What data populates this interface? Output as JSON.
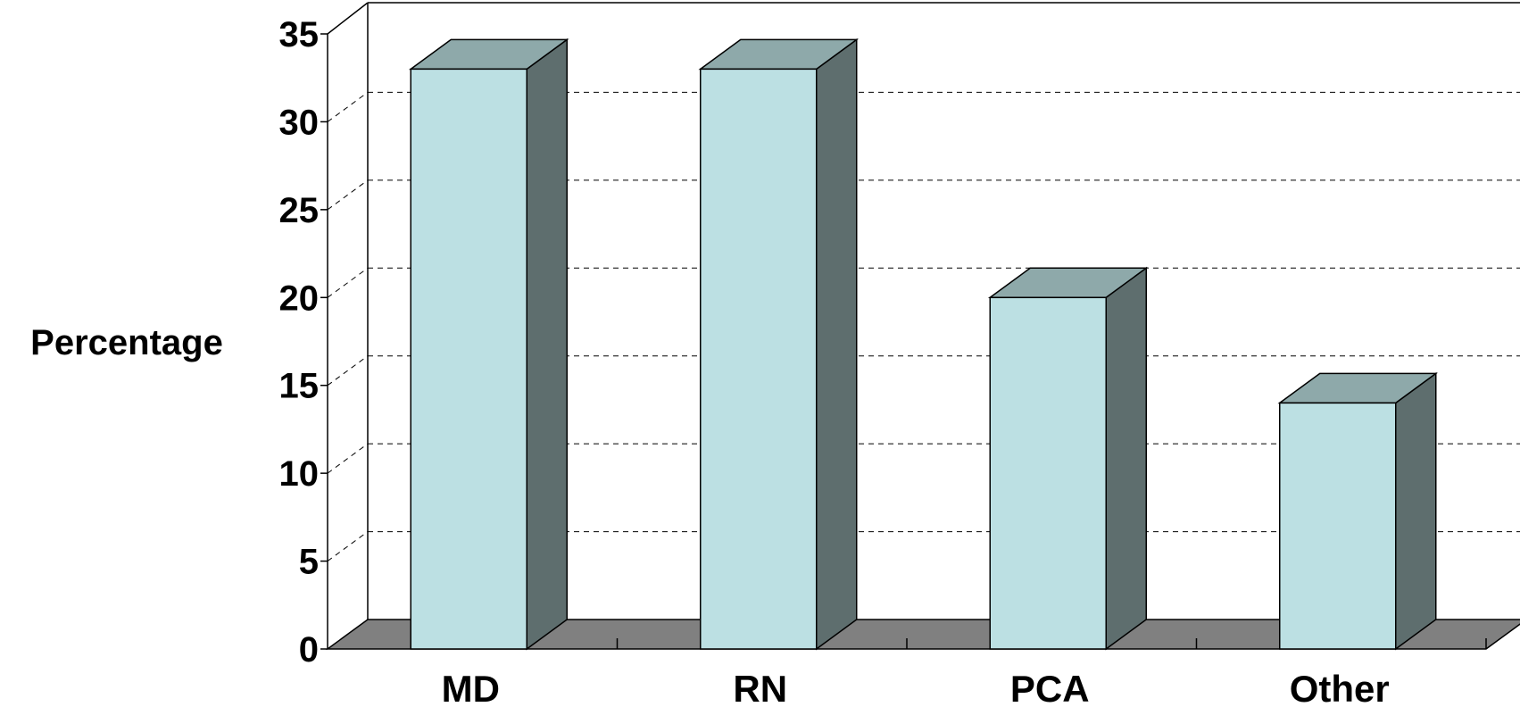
{
  "chart_data": {
    "type": "bar",
    "categories": [
      "MD",
      "RN",
      "PCA",
      "Other"
    ],
    "values": [
      33,
      33,
      20,
      14
    ],
    "ylabel": "Percentage",
    "xlabel": "",
    "ylim": [
      0,
      35
    ],
    "yticks": [
      0,
      5,
      10,
      15,
      20,
      25,
      30,
      35
    ],
    "grid": true,
    "three_d": true,
    "colors": {
      "bar_front": "#bce0e3",
      "bar_top": "#8ea9aa",
      "bar_side": "#5e6e6e",
      "floor": "#808080"
    }
  }
}
